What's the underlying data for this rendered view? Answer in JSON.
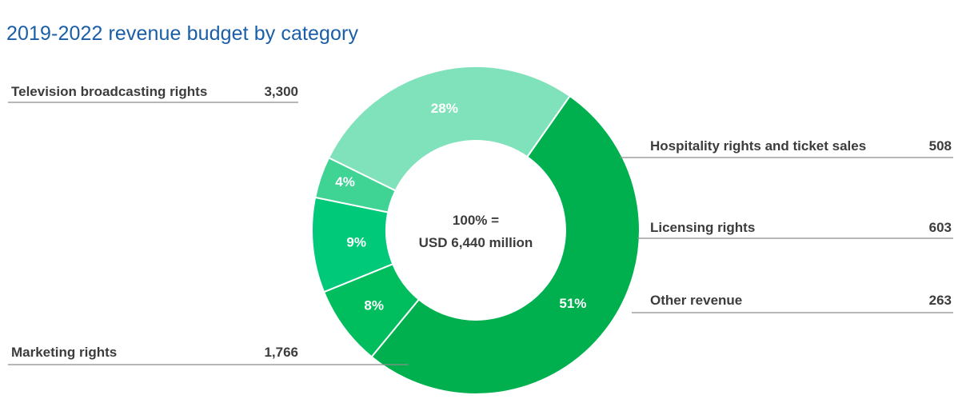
{
  "chart_data": {
    "type": "pie",
    "title": "2019-2022 revenue budget by category",
    "center_label": [
      "100% =",
      "USD 6,440 million"
    ],
    "slices": [
      {
        "label": "Television broadcasting rights",
        "value": 3300,
        "value_text": "3,300",
        "percent": 51,
        "percent_text": "51%",
        "color": "#00b04f"
      },
      {
        "label": "Hospitality rights and ticket sales",
        "value": 508,
        "value_text": "508",
        "percent": 8,
        "percent_text": "8%",
        "color": "#00bd5e"
      },
      {
        "label": "Licensing rights",
        "value": 603,
        "value_text": "603",
        "percent": 9,
        "percent_text": "9%",
        "color": "#00c97a"
      },
      {
        "label": "Other revenue",
        "value": 263,
        "value_text": "263",
        "percent": 4,
        "percent_text": "4%",
        "color": "#3fd494"
      },
      {
        "label": "Marketing rights",
        "value": 1766,
        "value_text": "1,766",
        "percent": 28,
        "percent_text": "28%",
        "color": "#80e2bb"
      }
    ]
  }
}
